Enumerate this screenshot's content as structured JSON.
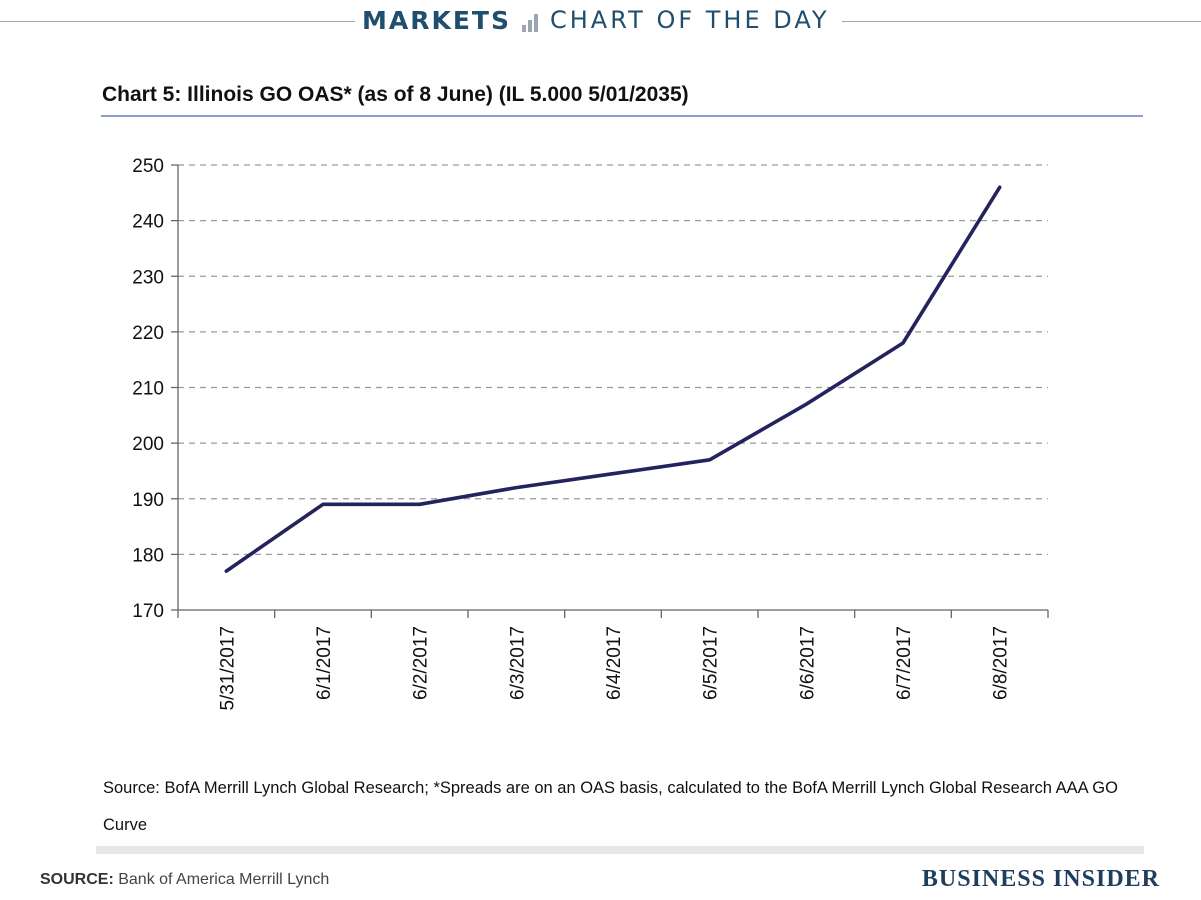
{
  "header": {
    "section": "MARKETS",
    "feature": "CHART OF THE DAY",
    "icon": "bar-chart-icon",
    "color": "#1f4e6e"
  },
  "chart_data": {
    "type": "line",
    "title": "Chart 5: Illinois GO OAS* (as of 8 June) (IL 5.000 5/01/2035)",
    "xlabel": "",
    "ylabel": "",
    "categories": [
      "5/31/2017",
      "6/1/2017",
      "6/2/2017",
      "6/3/2017",
      "6/4/2017",
      "6/5/2017",
      "6/6/2017",
      "6/7/2017",
      "6/8/2017"
    ],
    "series": [
      {
        "values": [
          177,
          189,
          189,
          192,
          194.5,
          197,
          207,
          218,
          246
        ]
      }
    ],
    "ylim": [
      170,
      250
    ],
    "yticks": [
      170,
      180,
      190,
      200,
      210,
      220,
      230,
      240,
      250
    ],
    "grid": "horizontal-dashed",
    "line_color": "#23235e"
  },
  "source_note": "Source: BofA Merrill Lynch Global Research; *Spreads are on an OAS basis, calculated to the BofA Merrill Lynch Global Research AAA GO Curve",
  "footer": {
    "source_label": "SOURCE:",
    "source_text": " Bank of America Merrill Lynch",
    "brand": "BUSINESS INSIDER"
  }
}
